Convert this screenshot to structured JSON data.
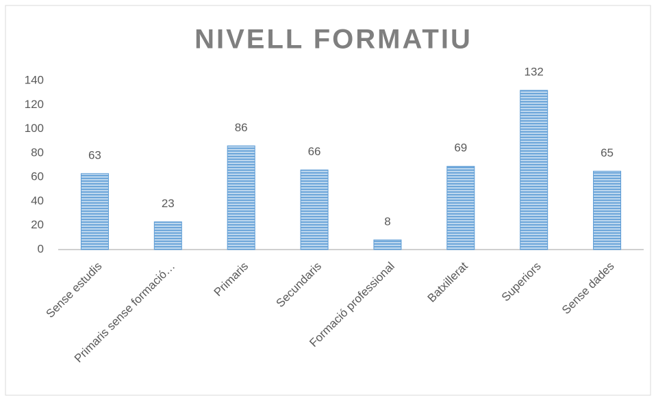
{
  "chart_data": {
    "type": "bar",
    "title": "NIVELL FORMATIU",
    "categories": [
      "Sense estudis",
      "Primaris sense formació…",
      "Primaris",
      "Secundaris",
      "Formació professional",
      "Batxillerat",
      "Superiors",
      "Sense dades"
    ],
    "values": [
      63,
      23,
      86,
      66,
      8,
      69,
      132,
      65
    ],
    "color": "#5b9bd5",
    "ylim": [
      0,
      140
    ],
    "yticks": [
      0,
      20,
      40,
      60,
      80,
      100,
      120,
      140
    ],
    "grid": false
  }
}
